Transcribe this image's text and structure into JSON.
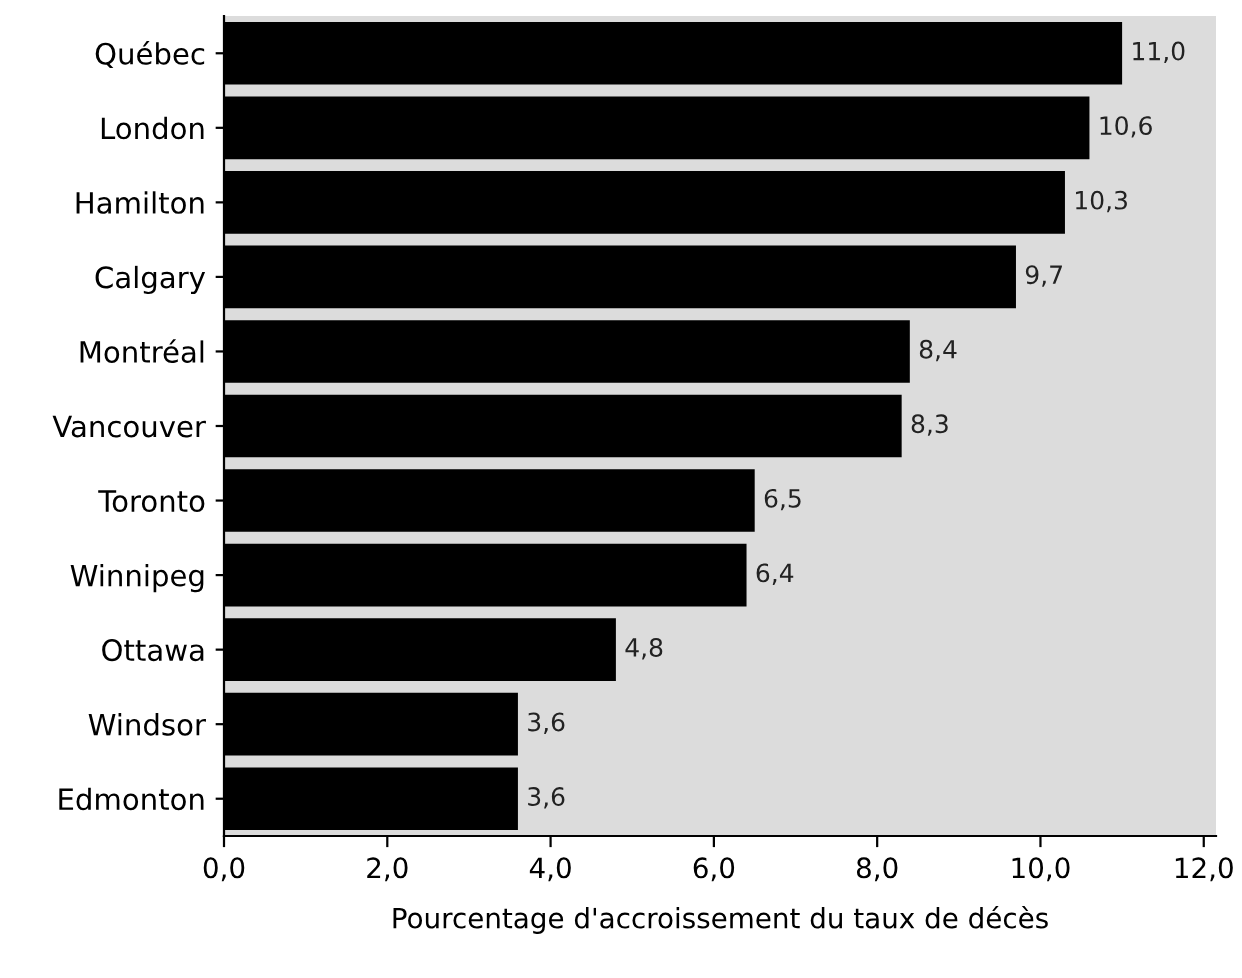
{
  "chart_data": {
    "type": "bar",
    "orientation": "horizontal",
    "xlabel": "Pourcentage d'accroissement du taux de décès",
    "categories": [
      "Québec",
      "London",
      "Hamilton",
      "Calgary",
      "Montréal",
      "Vancouver",
      "Toronto",
      "Winnipeg",
      "Ottawa",
      "Windsor",
      "Edmonton"
    ],
    "values": [
      11.0,
      10.6,
      10.3,
      9.7,
      8.4,
      8.3,
      6.5,
      6.4,
      4.8,
      3.6,
      3.6
    ],
    "value_labels": [
      "11,0",
      "10,6",
      "10,3",
      "9,7",
      "8,4",
      "8,3",
      "6,5",
      "6,4",
      "4,8",
      "3,6",
      "3,6"
    ],
    "color": "#000000",
    "xlim": [
      0,
      12.15
    ],
    "xticks": [
      {
        "value": 0,
        "label": "0,0"
      },
      {
        "value": 2,
        "label": "2,0"
      },
      {
        "value": 4,
        "label": "4,0"
      },
      {
        "value": 6,
        "label": "6,0"
      },
      {
        "value": 8,
        "label": "8,0"
      },
      {
        "value": 10,
        "label": "10,0"
      },
      {
        "value": 12,
        "label": "12,0"
      }
    ],
    "grid": false
  }
}
